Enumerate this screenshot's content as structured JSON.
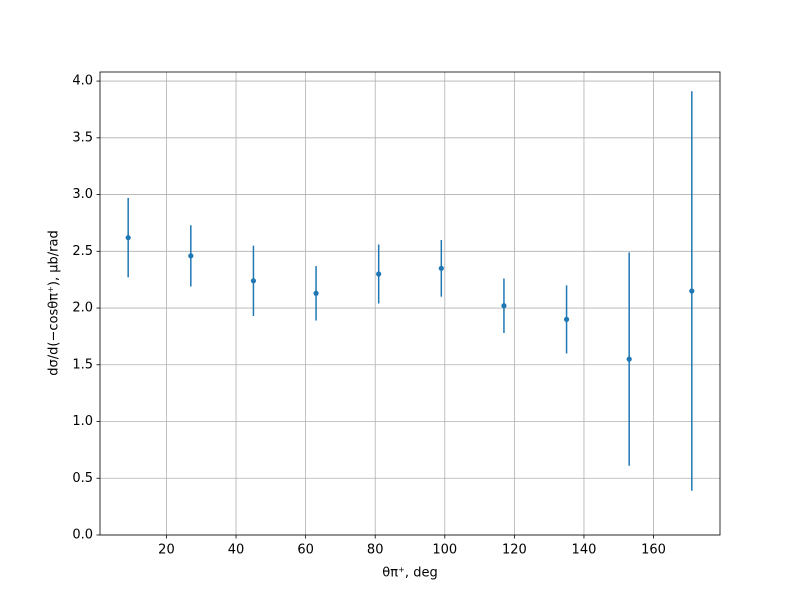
{
  "chart_data": {
    "type": "errorbar",
    "xlabel": "θπ⁺, deg",
    "ylabel": "dσ/d(−cosθπ⁺), μb/rad",
    "x": [
      9,
      27,
      45,
      63,
      81,
      99,
      117,
      135,
      153,
      171
    ],
    "values": [
      2.62,
      2.46,
      2.24,
      2.13,
      2.3,
      2.35,
      2.02,
      1.9,
      1.55,
      2.15
    ],
    "errors": [
      0.35,
      0.27,
      0.31,
      0.24,
      0.26,
      0.25,
      0.24,
      0.3,
      0.94,
      1.76
    ],
    "color": "#1f77b4",
    "xlim": [
      0.9,
      179.1
    ],
    "ylim": [
      0,
      4.08
    ],
    "xticks": [
      20,
      40,
      60,
      80,
      100,
      120,
      140,
      160
    ],
    "yticks": [
      {
        "value": 0,
        "label": "0.0"
      },
      0.5,
      {
        "value": 1,
        "label": "1.0"
      },
      1.5,
      {
        "value": 2,
        "label": "2.0"
      },
      2.5,
      {
        "value": 3,
        "label": "3.0"
      },
      3.5,
      {
        "value": 4,
        "label": "4.0"
      }
    ],
    "grid": true
  }
}
